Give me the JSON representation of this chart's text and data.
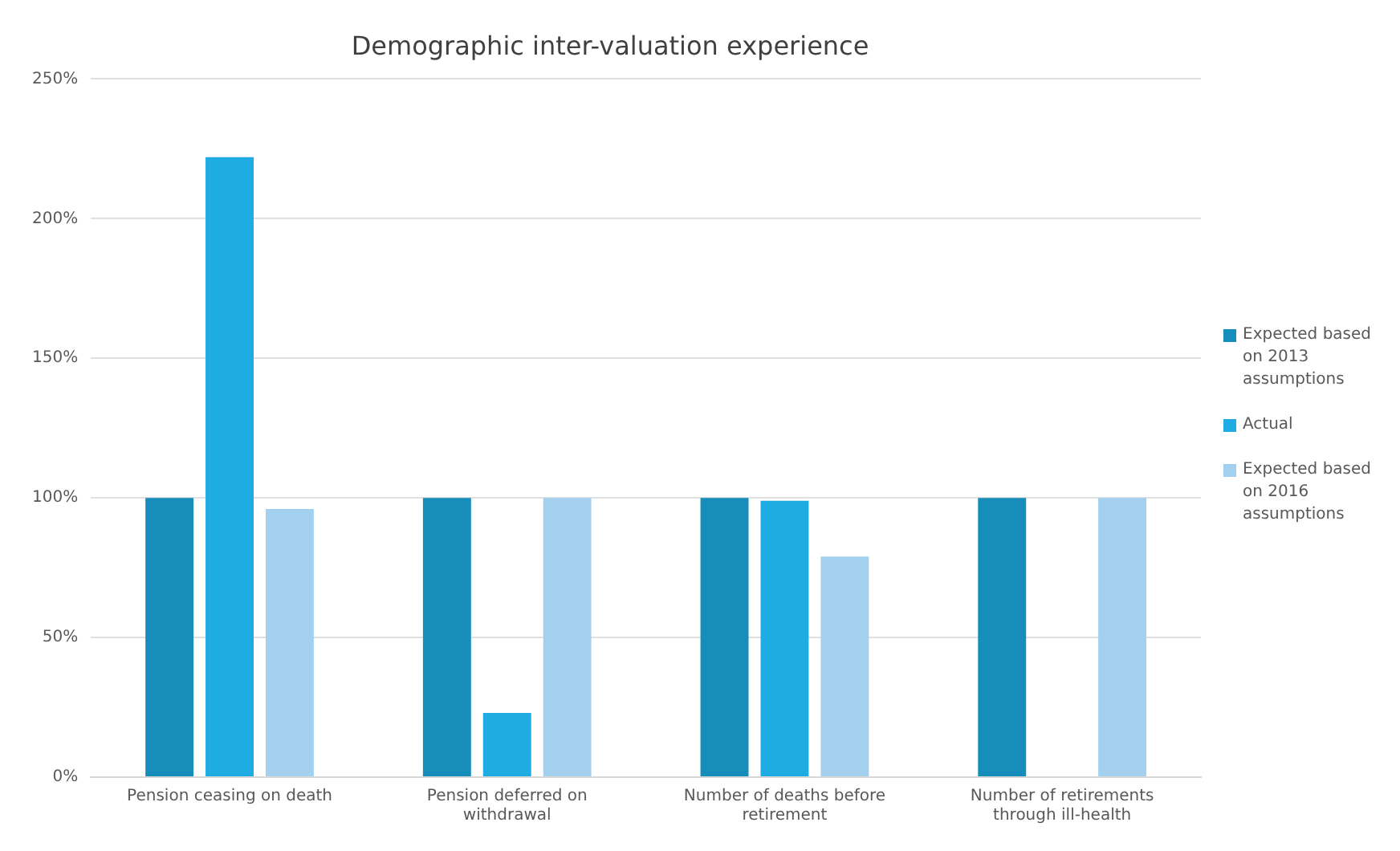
{
  "chart_data": {
    "type": "bar",
    "title": "Demographic inter-valuation experience",
    "categories": [
      "Pension ceasing on death",
      "Pension deferred on withdrawal",
      "Number of deaths before retirement",
      "Number of retirements through ill-health"
    ],
    "series": [
      {
        "name": "Expected based on 2013 assumptions",
        "color": "#168dbb",
        "values": [
          100,
          100,
          100,
          100
        ]
      },
      {
        "name": "Actual",
        "color": "#1eace3",
        "values": [
          222,
          23,
          99,
          null
        ]
      },
      {
        "name": "Expected based on 2016 assumptions",
        "color": "#a3d0ee",
        "values": [
          96,
          100,
          79,
          100
        ]
      }
    ],
    "ylim": [
      0,
      250
    ],
    "yticks": [
      {
        "value": 0,
        "label": "0%"
      },
      {
        "value": 50,
        "label": "50%"
      },
      {
        "value": 100,
        "label": "100%"
      },
      {
        "value": 150,
        "label": "150%"
      },
      {
        "value": 200,
        "label": "200%"
      },
      {
        "value": 250,
        "label": "250%"
      }
    ],
    "grid": "y",
    "legend": "right"
  }
}
